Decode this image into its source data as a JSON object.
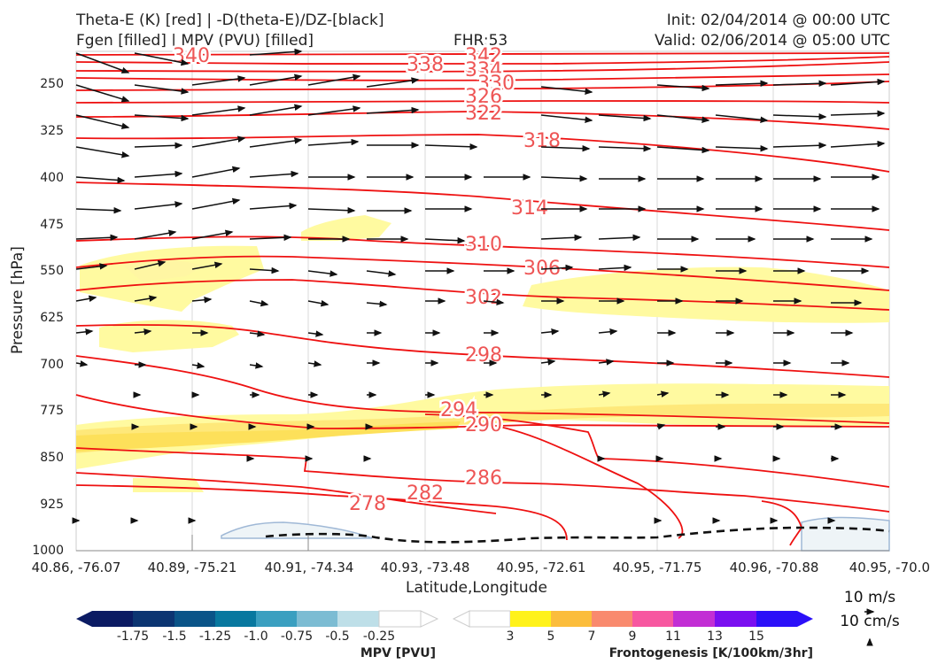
{
  "header": {
    "title_line1": "Theta-E (K) [red] | -D(theta-E)/DZ-[black]",
    "title_line2": "Fgen [filled] | MPV (PVU) [filled]",
    "fhr": "FHR:53",
    "init": "Init: 02/04/2014 @ 00:00 UTC",
    "valid": "Valid: 02/06/2014 @ 05:00 UTC"
  },
  "chart_data": {
    "type": "cross-section",
    "ylabel": "Pressure [hPa]",
    "xlabel": "Latitude,Longitude",
    "y_ticks": [
      "250",
      "325",
      "400",
      "475",
      "550",
      "625",
      "700",
      "775",
      "850",
      "925",
      "1000"
    ],
    "y_range": [
      200,
      1000
    ],
    "x_ticks": [
      "40.86, -76.07",
      "40.89, -75.21",
      "40.91, -74.34",
      "40.93, -73.48",
      "40.95, -72.61",
      "40.95, -71.75",
      "40.96, -70.88",
      "40.95, -70.0"
    ],
    "theta_e_contour_labels": [
      "340",
      "338",
      "342",
      "334",
      "330",
      "326",
      "322",
      "318",
      "314",
      "310",
      "306",
      "302",
      "298",
      "294",
      "290",
      "286",
      "282",
      "278"
    ],
    "vector_reference": {
      "line1": "10 m/s",
      "line2": "10 cm/s"
    },
    "colorbars": [
      {
        "title": "MPV [PVU]",
        "ticks": [
          "-1.75",
          "-1.5",
          "-1.25",
          "-1.0",
          "-0.75",
          "-0.5",
          "-0.25"
        ],
        "colors": [
          "#0b1b63",
          "#0c3572",
          "#0a5488",
          "#08789f",
          "#3a9fc0",
          "#7cbcd3",
          "#bedfe8",
          "#ffffff"
        ]
      },
      {
        "title": "Frontogenesis [K/100km/3hr]",
        "ticks": [
          "3",
          "5",
          "7",
          "9",
          "11",
          "13",
          "15"
        ],
        "colors": [
          "#ffffff",
          "#fff21a",
          "#fbbd3c",
          "#f98a6e",
          "#f757a0",
          "#c22ed4",
          "#7a0ff0",
          "#2b10f8"
        ]
      }
    ]
  }
}
